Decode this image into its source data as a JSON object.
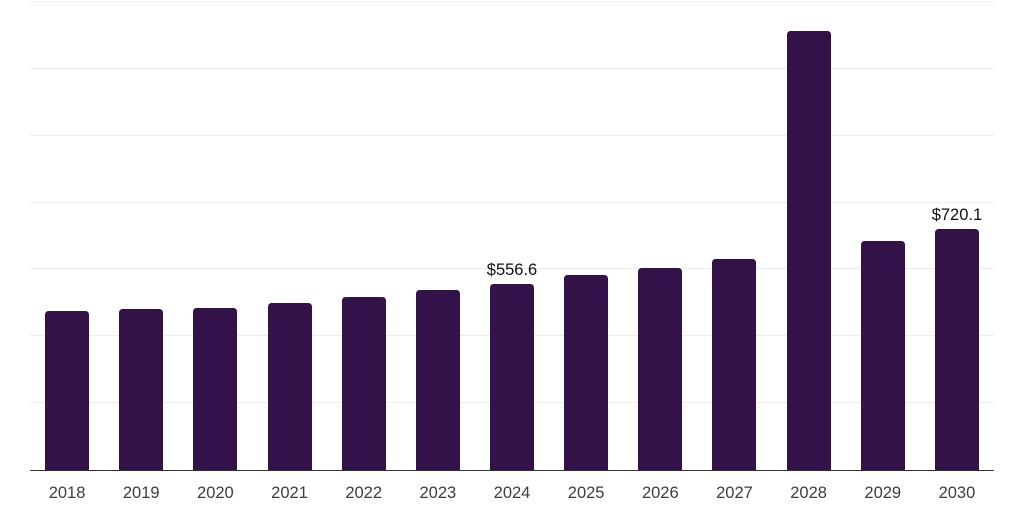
{
  "chart_data": {
    "type": "bar",
    "title": "",
    "xlabel": "",
    "ylabel": "",
    "categories": [
      "2018",
      "2019",
      "2020",
      "2021",
      "2022",
      "2023",
      "2024",
      "2025",
      "2026",
      "2027",
      "2028",
      "2029",
      "2030"
    ],
    "values": [
      475,
      483,
      486,
      500,
      519,
      539,
      556.6,
      584,
      603.5,
      630.5,
      1313.5,
      686,
      720.1
    ],
    "data_labels": {
      "2024": "$556.6",
      "2030": "$720.1"
    },
    "ylim": [
      0,
      1400
    ],
    "grid_step": 200,
    "grid": "horizontal",
    "legend": "none",
    "colors": {
      "bar": "#331249",
      "gridline": "#ededed",
      "axis_line": "#333333",
      "tick_label": "#3d3d3d",
      "data_label": "#111111",
      "background": "#ffffff"
    }
  }
}
